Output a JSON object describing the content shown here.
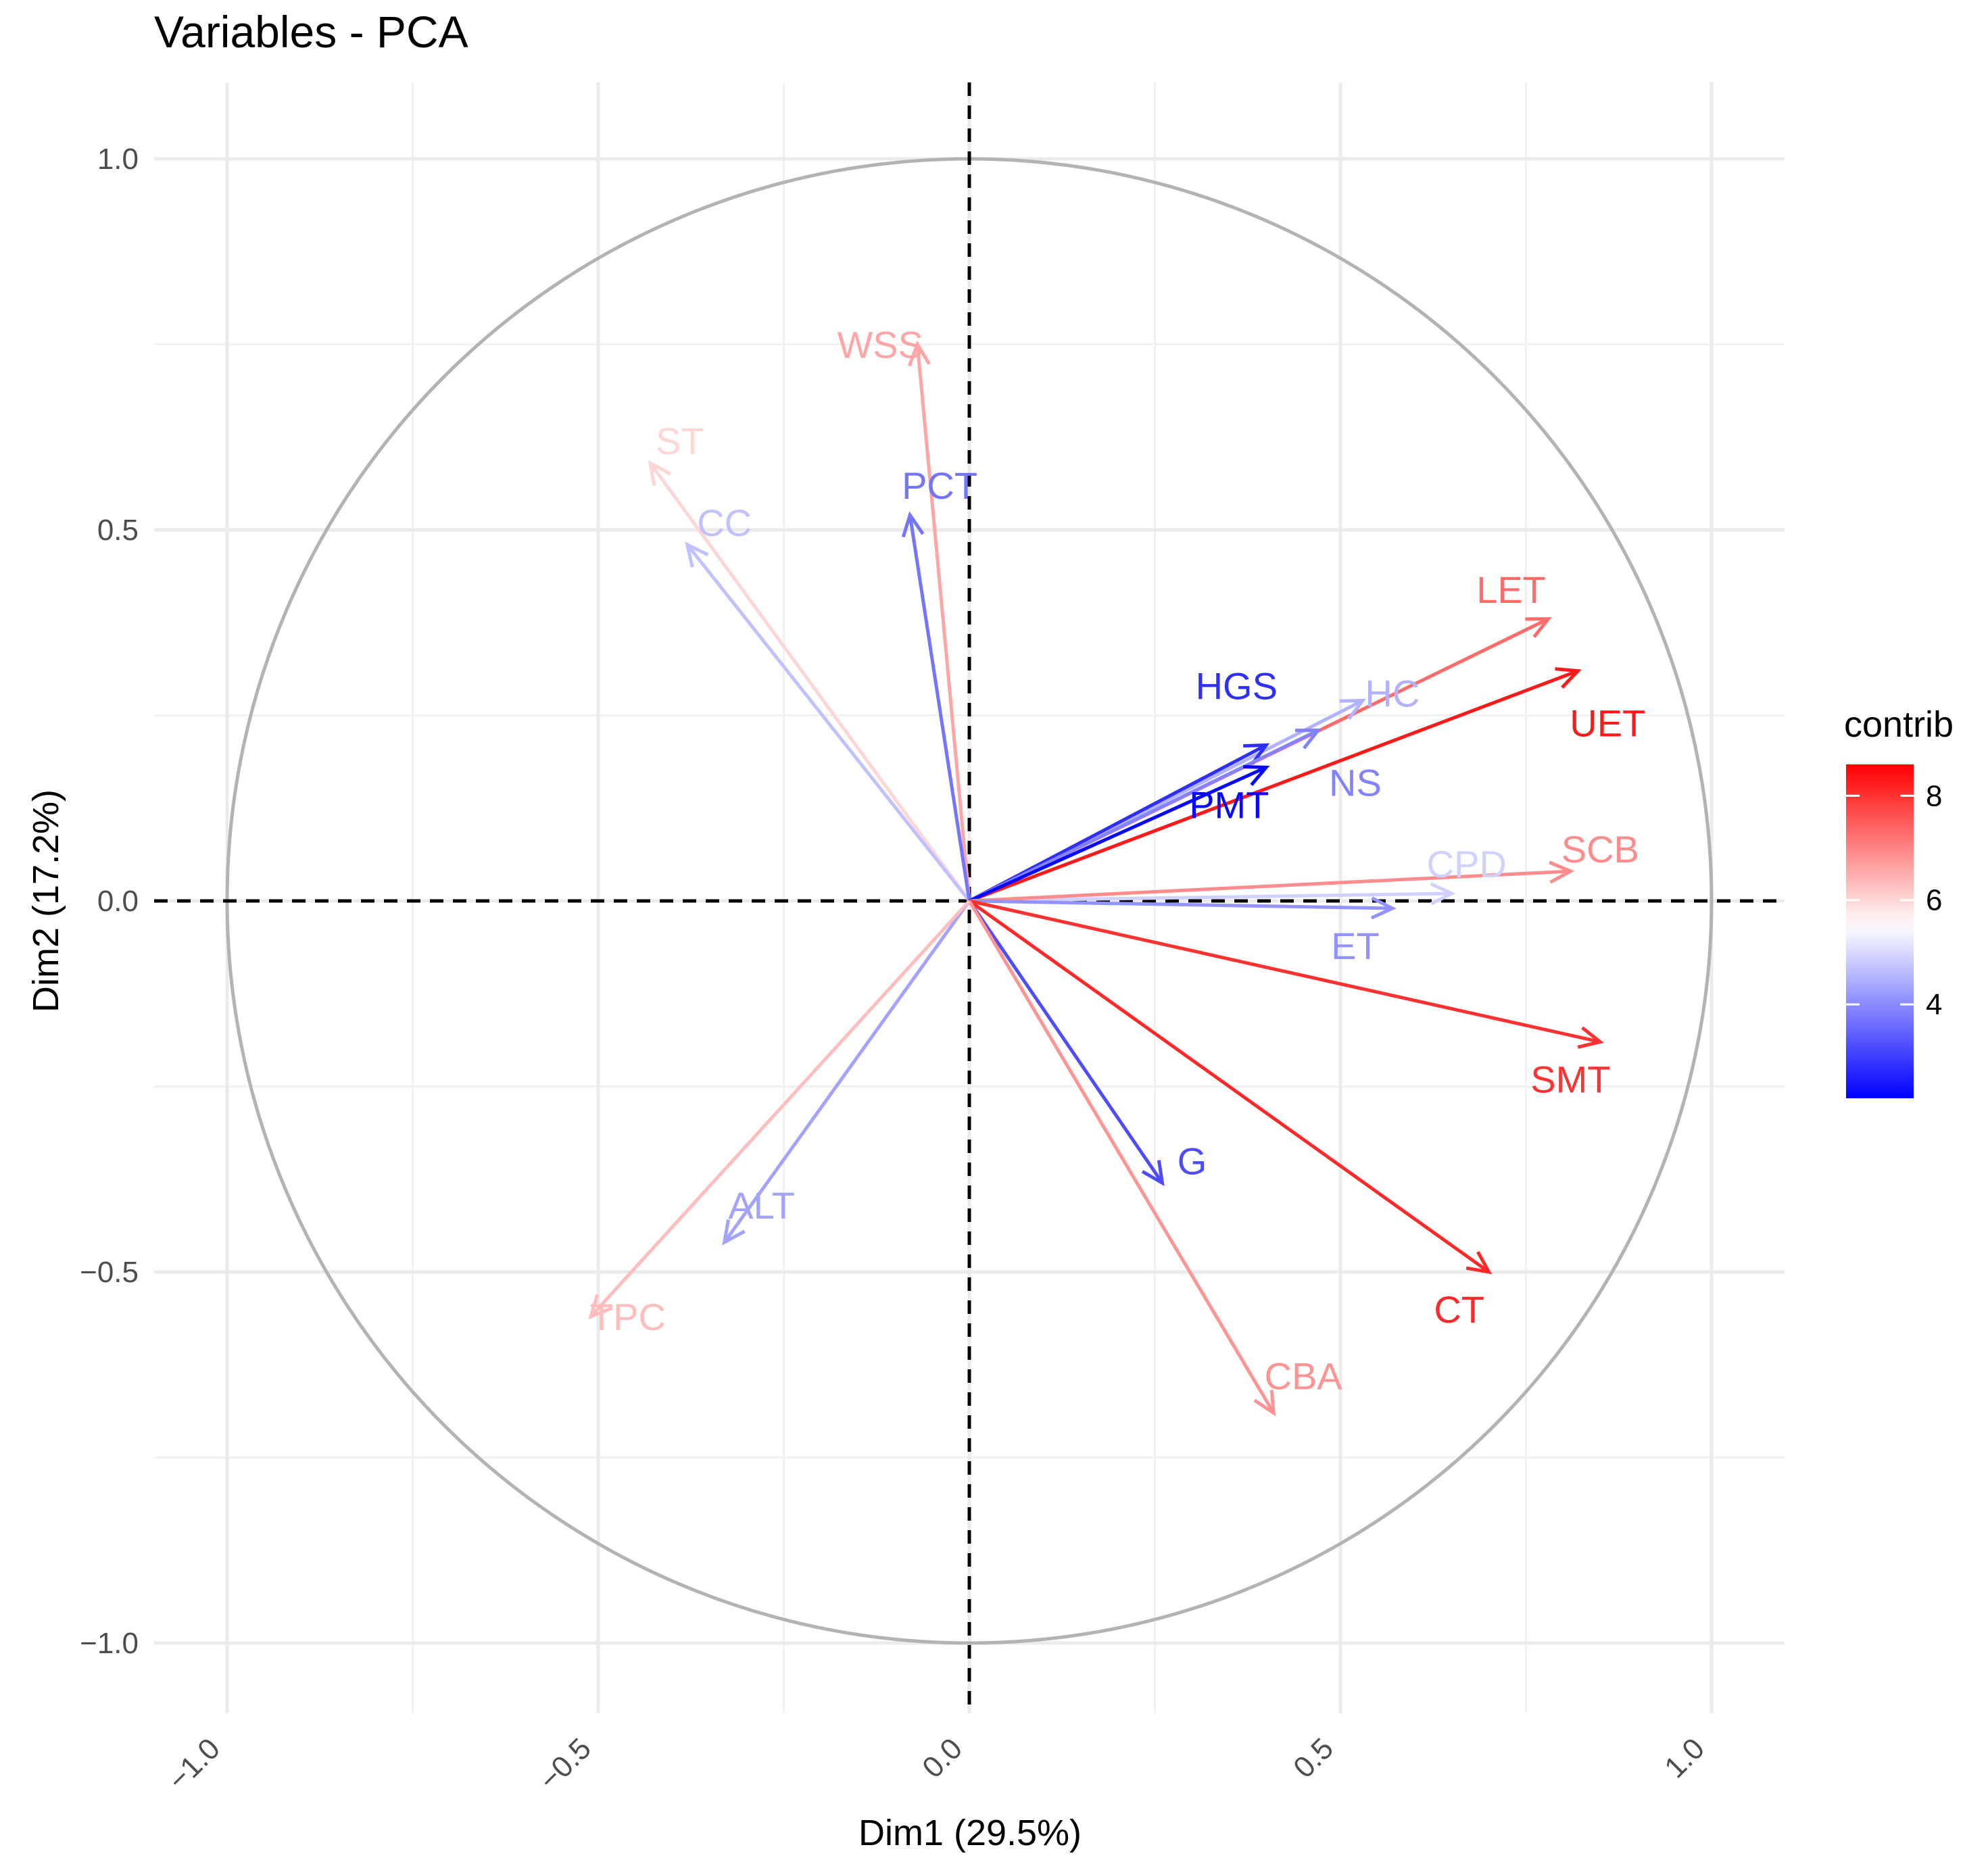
{
  "chart_data": {
    "type": "scatter",
    "subtype": "pca-variable-correlation-circle",
    "title": "Variables - PCA",
    "xlabel": "Dim1 (29.5%)",
    "ylabel": "Dim2 (17.2%)",
    "xlim": [
      -1.1,
      1.1
    ],
    "ylim": [
      -1.1,
      1.1
    ],
    "x_ticks": [
      -1.0,
      -0.5,
      0.0,
      0.5,
      1.0
    ],
    "y_ticks": [
      -1.0,
      -0.5,
      0.0,
      0.5,
      1.0
    ],
    "x_tick_labels": [
      "−1.0",
      "−0.5",
      "0.0",
      "0.5",
      "1.0"
    ],
    "y_tick_labels": [
      "−1.0",
      "−0.5",
      "0.0",
      "0.5",
      "1.0"
    ],
    "grid": true,
    "legend": {
      "title": "contrib",
      "position": "right",
      "min": 2.2,
      "max": 8.6,
      "ticks": [
        4,
        6,
        8
      ],
      "tick_labels": [
        "4",
        "6",
        "8"
      ],
      "colors": {
        "low": "#0000FF",
        "mid": "#FFFFFF",
        "high": "#FF0000"
      },
      "midpoint": 5.5
    },
    "variables": [
      {
        "name": "WSS",
        "x": -0.07,
        "y": 0.75,
        "contrib": 6.6
      },
      {
        "name": "ST",
        "x": -0.43,
        "y": 0.59,
        "contrib": 6.0
      },
      {
        "name": "CC",
        "x": -0.38,
        "y": 0.48,
        "contrib": 4.7
      },
      {
        "name": "PCT",
        "x": -0.08,
        "y": 0.52,
        "contrib": 3.7
      },
      {
        "name": "LET",
        "x": 0.78,
        "y": 0.38,
        "contrib": 7.3
      },
      {
        "name": "UET",
        "x": 0.82,
        "y": 0.31,
        "contrib": 8.3
      },
      {
        "name": "HC",
        "x": 0.53,
        "y": 0.27,
        "contrib": 4.5
      },
      {
        "name": "HGS",
        "x": 0.4,
        "y": 0.21,
        "contrib": 2.8
      },
      {
        "name": "NS",
        "x": 0.47,
        "y": 0.23,
        "contrib": 3.9
      },
      {
        "name": "PMT",
        "x": 0.4,
        "y": 0.18,
        "contrib": 2.3
      },
      {
        "name": "CPD",
        "x": 0.65,
        "y": 0.01,
        "contrib": 4.9
      },
      {
        "name": "SCB",
        "x": 0.81,
        "y": 0.04,
        "contrib": 6.9
      },
      {
        "name": "ET",
        "x": 0.57,
        "y": -0.01,
        "contrib": 4.1
      },
      {
        "name": "SMT",
        "x": 0.85,
        "y": -0.19,
        "contrib": 8.0
      },
      {
        "name": "G",
        "x": 0.26,
        "y": -0.38,
        "contrib": 3.2
      },
      {
        "name": "CT",
        "x": 0.7,
        "y": -0.5,
        "contrib": 8.1
      },
      {
        "name": "CBA",
        "x": 0.41,
        "y": -0.69,
        "contrib": 6.8
      },
      {
        "name": "ALT",
        "x": -0.33,
        "y": -0.46,
        "contrib": 4.3
      },
      {
        "name": "TPC",
        "x": -0.51,
        "y": -0.56,
        "contrib": 6.3
      }
    ]
  }
}
